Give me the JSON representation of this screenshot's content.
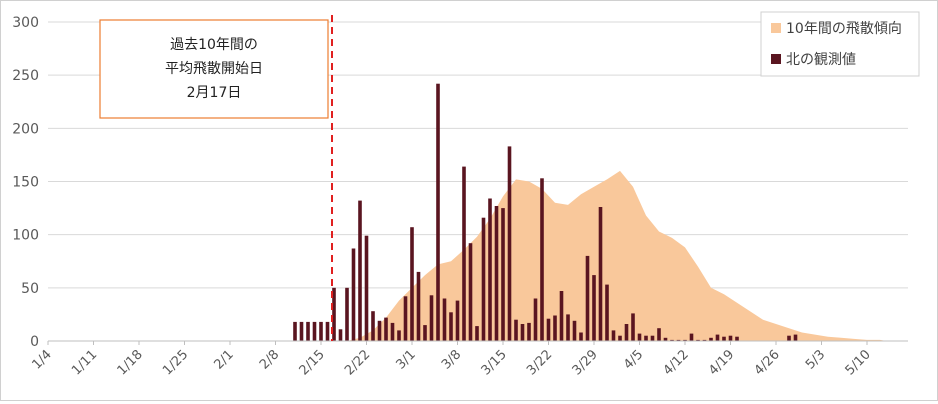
{
  "chart_data": {
    "type": "bar",
    "ylim": [
      0,
      300
    ],
    "yticks": [
      0,
      50,
      100,
      150,
      200,
      250,
      300
    ],
    "x_start": "1/4",
    "x_end": "5/13",
    "xtick_labels": [
      "1/4",
      "1/11",
      "1/18",
      "1/25",
      "2/1",
      "2/8",
      "2/15",
      "2/22",
      "3/1",
      "3/8",
      "3/15",
      "3/22",
      "3/29",
      "4/5",
      "4/12",
      "4/19",
      "4/26",
      "5/3",
      "5/10"
    ],
    "grid": true,
    "legend_position": "top-right",
    "annotation": {
      "lines": [
        "過去10年間の",
        "平均飛散開始日",
        "2月17日"
      ],
      "date": "2/17",
      "line_color": "#e02020",
      "box_border_color": "#ed7d31"
    },
    "series": [
      {
        "name": "10年間の飛散傾向",
        "kind": "area",
        "color": "#f9c89b",
        "points": [
          [
            "2/19",
            0
          ],
          [
            "2/21",
            3
          ],
          [
            "2/23",
            10
          ],
          [
            "2/25",
            22
          ],
          [
            "2/27",
            38
          ],
          [
            "3/1",
            50
          ],
          [
            "3/3",
            62
          ],
          [
            "3/5",
            72
          ],
          [
            "3/7",
            75
          ],
          [
            "3/9",
            86
          ],
          [
            "3/11",
            98
          ],
          [
            "3/13",
            115
          ],
          [
            "3/15",
            136
          ],
          [
            "3/17",
            152
          ],
          [
            "3/19",
            150
          ],
          [
            "3/21",
            143
          ],
          [
            "3/23",
            130
          ],
          [
            "3/25",
            128
          ],
          [
            "3/27",
            138
          ],
          [
            "3/29",
            145
          ],
          [
            "3/31",
            152
          ],
          [
            "4/2",
            160
          ],
          [
            "4/4",
            145
          ],
          [
            "4/6",
            118
          ],
          [
            "4/8",
            103
          ],
          [
            "4/10",
            97
          ],
          [
            "4/12",
            88
          ],
          [
            "4/14",
            70
          ],
          [
            "4/16",
            50
          ],
          [
            "4/18",
            44
          ],
          [
            "4/20",
            36
          ],
          [
            "4/22",
            28
          ],
          [
            "4/24",
            20
          ],
          [
            "4/26",
            16
          ],
          [
            "4/28",
            12
          ],
          [
            "4/30",
            8
          ],
          [
            "5/2",
            6
          ],
          [
            "5/4",
            4
          ],
          [
            "5/6",
            3
          ],
          [
            "5/8",
            2
          ],
          [
            "5/10",
            1
          ],
          [
            "5/12",
            1
          ],
          [
            "5/13",
            0
          ]
        ]
      },
      {
        "name": "北の観測値",
        "kind": "bar",
        "color": "#5a1520",
        "points": [
          [
            "2/11",
            18
          ],
          [
            "2/12",
            18
          ],
          [
            "2/13",
            18
          ],
          [
            "2/14",
            18
          ],
          [
            "2/15",
            18
          ],
          [
            "2/16",
            18
          ],
          [
            "2/17",
            50
          ],
          [
            "2/18",
            11
          ],
          [
            "2/19",
            50
          ],
          [
            "2/20",
            87
          ],
          [
            "2/21",
            132
          ],
          [
            "2/22",
            99
          ],
          [
            "2/23",
            28
          ],
          [
            "2/24",
            19
          ],
          [
            "2/25",
            22
          ],
          [
            "2/26",
            17
          ],
          [
            "2/27",
            10
          ],
          [
            "2/28",
            42
          ],
          [
            "3/1",
            107
          ],
          [
            "3/2",
            65
          ],
          [
            "3/3",
            15
          ],
          [
            "3/4",
            43
          ],
          [
            "3/5",
            242
          ],
          [
            "3/6",
            40
          ],
          [
            "3/7",
            27
          ],
          [
            "3/8",
            38
          ],
          [
            "3/9",
            164
          ],
          [
            "3/10",
            92
          ],
          [
            "3/11",
            14
          ],
          [
            "3/12",
            116
          ],
          [
            "3/13",
            134
          ],
          [
            "3/14",
            127
          ],
          [
            "3/15",
            125
          ],
          [
            "3/16",
            183
          ],
          [
            "3/17",
            20
          ],
          [
            "3/18",
            16
          ],
          [
            "3/19",
            17
          ],
          [
            "3/20",
            40
          ],
          [
            "3/21",
            153
          ],
          [
            "3/22",
            21
          ],
          [
            "3/23",
            24
          ],
          [
            "3/24",
            47
          ],
          [
            "3/25",
            25
          ],
          [
            "3/26",
            19
          ],
          [
            "3/27",
            8
          ],
          [
            "3/28",
            80
          ],
          [
            "3/29",
            62
          ],
          [
            "3/30",
            126
          ],
          [
            "3/31",
            53
          ],
          [
            "4/1",
            10
          ],
          [
            "4/2",
            5
          ],
          [
            "4/3",
            16
          ],
          [
            "4/4",
            26
          ],
          [
            "4/5",
            7
          ],
          [
            "4/6",
            5
          ],
          [
            "4/7",
            5
          ],
          [
            "4/8",
            12
          ],
          [
            "4/9",
            3
          ],
          [
            "4/10",
            1
          ],
          [
            "4/11",
            1
          ],
          [
            "4/12",
            1
          ],
          [
            "4/13",
            7
          ],
          [
            "4/14",
            1
          ],
          [
            "4/15",
            1
          ],
          [
            "4/16",
            3
          ],
          [
            "4/17",
            6
          ],
          [
            "4/18",
            4
          ],
          [
            "4/19",
            5
          ],
          [
            "4/20",
            4
          ],
          [
            "4/28",
            5
          ],
          [
            "4/29",
            6
          ]
        ]
      }
    ]
  }
}
